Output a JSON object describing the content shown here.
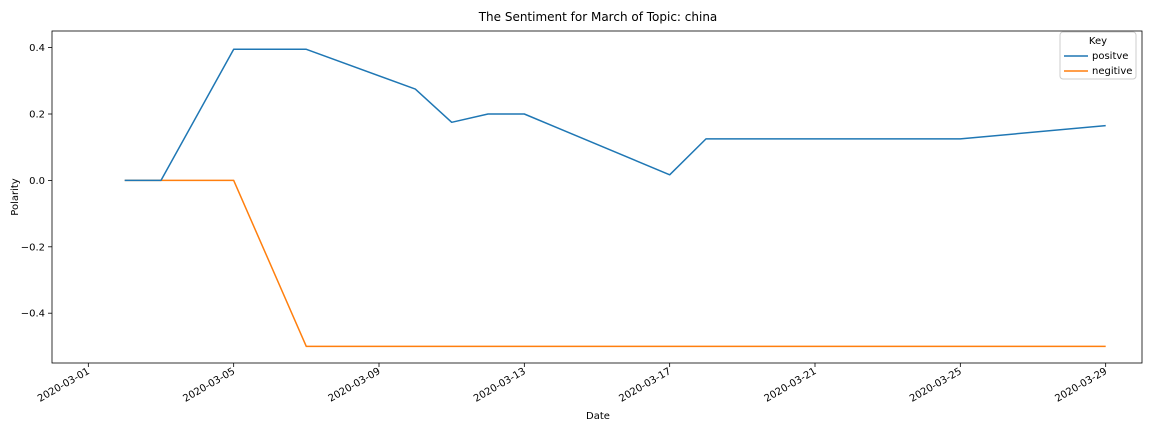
{
  "chart_data": {
    "type": "line",
    "title": "The Sentiment for March of Topic: china",
    "xlabel": "Date",
    "ylabel": "Polarity",
    "x_ticks": [
      "2020-03-01",
      "2020-03-05",
      "2020-03-09",
      "2020-03-13",
      "2020-03-17",
      "2020-03-21",
      "2020-03-25",
      "2020-03-29"
    ],
    "y_ticks": [
      -0.4,
      -0.2,
      0.0,
      0.2,
      0.4
    ],
    "y_tick_labels": [
      "−0.4",
      "−0.2",
      "0.0",
      "0.2",
      "0.4"
    ],
    "xlim": [
      "2020-02-29",
      "2020-03-30"
    ],
    "ylim": [
      -0.55,
      0.45
    ],
    "grid": false,
    "legend": {
      "title": "Key",
      "position": "top-right"
    },
    "series": [
      {
        "name": "positve",
        "color": "#1f77b4",
        "points": [
          [
            "2020-03-02",
            0.0
          ],
          [
            "2020-03-03",
            0.0
          ],
          [
            "2020-03-05",
            0.395
          ],
          [
            "2020-03-07",
            0.395
          ],
          [
            "2020-03-10",
            0.275
          ],
          [
            "2020-03-11",
            0.175
          ],
          [
            "2020-03-12",
            0.2
          ],
          [
            "2020-03-13",
            0.2
          ],
          [
            "2020-03-17",
            0.017
          ],
          [
            "2020-03-18",
            0.125
          ],
          [
            "2020-03-25",
            0.125
          ],
          [
            "2020-03-29",
            0.165
          ]
        ]
      },
      {
        "name": "negitive",
        "color": "#ff7f0e",
        "points": [
          [
            "2020-03-02",
            0.0
          ],
          [
            "2020-03-05",
            0.0
          ],
          [
            "2020-03-07",
            -0.5
          ],
          [
            "2020-03-29",
            -0.5
          ]
        ]
      }
    ]
  }
}
